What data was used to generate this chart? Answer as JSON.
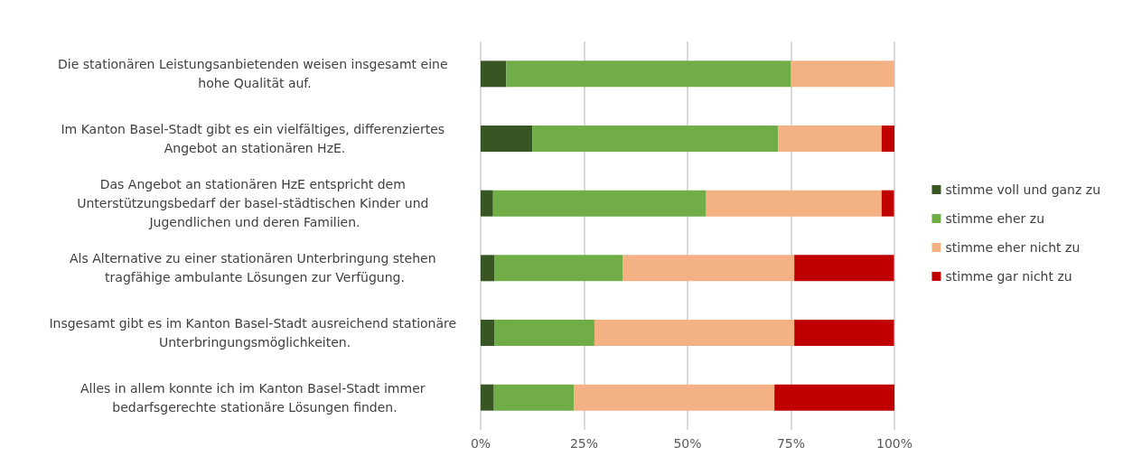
{
  "chart_data": {
    "type": "bar",
    "orientation": "horizontal",
    "stacked": true,
    "categories": [
      "Die stationären Leistungsanbietenden weisen insgesamt eine hohe Qualität auf.",
      "Im Kanton Basel-Stadt gibt es ein vielfältiges, differenziertes Angebot an stationären HzE.",
      "Das Angebot an stationären HzE entspricht dem Unterstützungsbedarf der basel-städtischen Kinder und Jugendlichen und deren Familien.",
      "Als Alternative zu einer stationären Unterbringung stehen tragfähige ambulante Lösungen zur Verfügung.",
      "Insgesamt gibt es im Kanton Basel-Stadt ausreichend stationäre Unterbringungsmöglichkeiten.",
      "Alles in allem konnte ich im Kanton Basel-Stadt immer bedarfsgerechte stationäre Lösungen finden."
    ],
    "series": [
      {
        "name": "stimme voll und ganz zu",
        "color": "#375623",
        "values": [
          6.2,
          12.5,
          3.0,
          3.4,
          3.4,
          3.2
        ]
      },
      {
        "name": "stimme eher zu",
        "color": "#70ad47",
        "values": [
          68.8,
          59.4,
          51.5,
          31.0,
          24.1,
          19.4
        ]
      },
      {
        "name": "stimme eher nicht zu",
        "color": "#f4b183",
        "values": [
          25.0,
          25.0,
          42.4,
          41.4,
          48.3,
          48.4
        ]
      },
      {
        "name": "stimme gar nicht zu",
        "color": "#c00000",
        "values": [
          0,
          3.1,
          3.0,
          24.1,
          24.1,
          29.0
        ]
      }
    ],
    "xlim": [
      0,
      100
    ],
    "xticks": [
      {
        "value": 0,
        "label": "0%"
      },
      {
        "value": 25,
        "label": "25%"
      },
      {
        "value": 50,
        "label": "50%"
      },
      {
        "value": 75,
        "label": "75%"
      },
      {
        "value": 100,
        "label": "100%"
      }
    ],
    "grid": "x",
    "legend": "right"
  }
}
